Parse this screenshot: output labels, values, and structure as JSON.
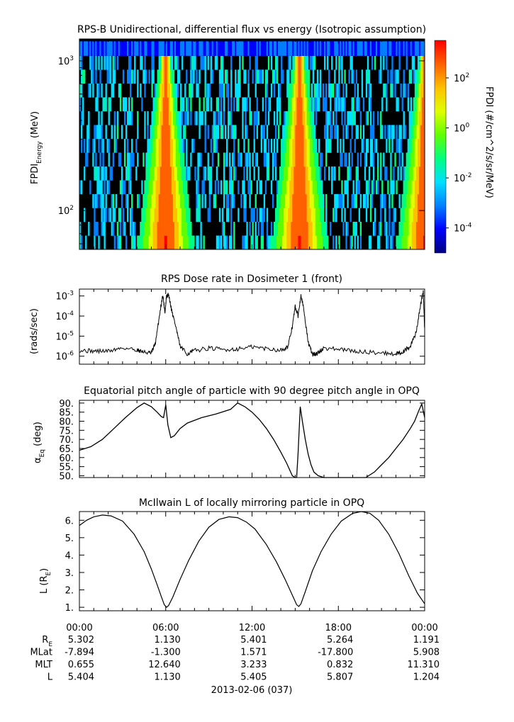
{
  "figure_date_label": "2013-02-06 (037)",
  "chart_data": [
    {
      "type": "heatmap",
      "title": "RPS-B  Unidirectional, differential flux vs energy (Isotropic assumption)",
      "ylabel_main": "FPDI",
      "ylabel_sub": "Energy",
      "ylabel_tail": " (MeV)",
      "y_scale": "log",
      "ylim": [
        55,
        1400
      ],
      "y_ticks": [
        {
          "base": "10",
          "exp": "2",
          "value": 100
        },
        {
          "base": "10",
          "exp": "3",
          "value": 1000
        }
      ],
      "xlim_hours": [
        0,
        24
      ],
      "flux_peaks_hours": [
        6.0,
        15.3,
        24.0
      ],
      "colorbar": {
        "label": "FPDI (#/cm^2/s/sr/MeV)",
        "scale": "log",
        "range_exp": [
          -5,
          3.5
        ],
        "colors": [
          "#000080",
          "#0000ff",
          "#0080ff",
          "#00e0ff",
          "#00ff80",
          "#60ff00",
          "#e0ff00",
          "#ffc000",
          "#ff6000",
          "#ff0000"
        ],
        "ticks": [
          {
            "base": "10",
            "exp": "2",
            "value_exp": 2
          },
          {
            "base": "10",
            "exp": "0",
            "value_exp": 0
          },
          {
            "base": "10",
            "exp": "-2",
            "value_exp": -2
          },
          {
            "base": "10",
            "exp": "-4",
            "value_exp": -4
          }
        ]
      }
    },
    {
      "type": "line",
      "title": "RPS  Dose rate in Dosimeter 1 (front)",
      "ylabel": "(rads/sec)",
      "y_scale": "log",
      "ylim": [
        4e-07,
        0.0022
      ],
      "y_ticks": [
        {
          "base": "10",
          "exp": "-3",
          "value": 0.001
        },
        {
          "base": "10",
          "exp": "-4",
          "value": 0.0001
        },
        {
          "base": "10",
          "exp": "-5",
          "value": 1e-05
        },
        {
          "base": "10",
          "exp": "-6",
          "value": 1e-06
        }
      ],
      "x_hours": [
        0,
        1,
        2,
        3,
        4,
        4.5,
        5,
        5.3,
        5.6,
        5.8,
        5.95,
        6.05,
        6.2,
        6.4,
        6.7,
        7.0,
        7.5,
        8,
        9,
        10,
        11,
        12,
        13,
        14,
        14.5,
        14.8,
        15.0,
        15.2,
        15.4,
        15.6,
        15.9,
        16.2,
        16.5,
        17,
        18,
        19,
        20,
        21,
        22,
        22.5,
        23,
        23.4,
        23.7,
        23.9,
        24
      ],
      "values": [
        2e-06,
        1.8e-06,
        1.8e-06,
        2.6e-06,
        2.1e-06,
        1.6e-06,
        1.4e-06,
        5e-06,
        0.00016,
        0.0011,
        0.00015,
        0.0009,
        0.0012,
        0.00022,
        3e-05,
        3e-06,
        1.3e-06,
        1.9e-06,
        2.5e-06,
        2.1e-06,
        2.3e-06,
        2.9e-06,
        2.4e-06,
        2e-06,
        3e-06,
        3e-05,
        0.0003,
        0.0001,
        0.0012,
        0.0002,
        5e-06,
        1.2e-06,
        1.3e-06,
        2.6e-06,
        2.2e-06,
        1.8e-06,
        1.6e-06,
        1.5e-06,
        1.3e-06,
        1.7e-06,
        3e-06,
        1.5e-05,
        0.0003,
        0.0017,
        2e-05
      ]
    },
    {
      "type": "line",
      "title": "Equatorial pitch angle of particle with 90 degree pitch angle in OPQ",
      "ylabel_main": "α",
      "ylabel_sub": "Eq",
      "ylabel_tail": " (deg)",
      "ylim": [
        49,
        91.5
      ],
      "y_ticks": [
        "90.",
        "85.",
        "80.",
        "75.",
        "70.",
        "65.",
        "60.",
        "55.",
        "50."
      ],
      "segments": [
        {
          "x_hours": [
            0,
            0.8,
            1.6,
            2.4,
            3.2,
            4.0,
            4.5,
            5.0,
            5.4,
            5.7,
            5.85,
            6.0,
            6.15,
            6.35,
            6.6,
            7.0,
            7.5,
            8.5,
            9.5,
            10.5,
            11.0,
            11.5,
            12.0,
            12.5,
            13.0,
            13.5,
            14.0,
            14.4,
            14.8,
            15.0,
            15.1
          ],
          "values": [
            64,
            66,
            70,
            76,
            82,
            87.5,
            90,
            88,
            85,
            82.5,
            82,
            89,
            78,
            71,
            72,
            76,
            79,
            82,
            84,
            86.5,
            90,
            88,
            85,
            81,
            76,
            70,
            63,
            57,
            50,
            49,
            49
          ]
        },
        {
          "x_hours": [
            15.1,
            15.2,
            15.35,
            15.5,
            15.7,
            15.9,
            16.1,
            16.3,
            16.6,
            17,
            18,
            19,
            19.9
          ],
          "values": [
            49,
            62,
            88,
            80,
            70,
            62,
            56,
            52,
            50,
            49,
            49,
            49,
            49
          ]
        },
        {
          "x_hours": [
            19.9,
            20.5,
            21,
            21.5,
            22,
            22.5,
            23,
            23.3,
            23.6,
            23.8,
            24
          ],
          "values": [
            49,
            52,
            56,
            60,
            65,
            70,
            76,
            80,
            86,
            89.5,
            82
          ]
        }
      ]
    },
    {
      "type": "line",
      "title": "McIlwain L of locally mirroring particle in OPQ",
      "ylabel_main": "L (R",
      "ylabel_sub": "E",
      "ylabel_tail": ")",
      "ylim": [
        0.8,
        6.5
      ],
      "y_ticks": [
        "6.",
        "5.",
        "4.",
        "3.",
        "2.",
        "1."
      ],
      "x_hours": [
        0,
        0.5,
        1.0,
        1.6,
        2.2,
        3.0,
        3.8,
        4.5,
        5.0,
        5.4,
        5.7,
        5.9,
        6.05,
        6.2,
        6.5,
        7.0,
        7.6,
        8.3,
        9.0,
        9.7,
        10.4,
        11.0,
        11.6,
        12.2,
        13.0,
        13.7,
        14.3,
        14.8,
        15.1,
        15.25,
        15.4,
        15.7,
        16.2,
        16.8,
        17.5,
        18.2,
        19.0,
        19.6,
        20.2,
        20.8,
        21.5,
        22.2,
        22.9,
        23.5,
        24.0
      ],
      "values": [
        5.7,
        6.0,
        6.2,
        6.3,
        6.25,
        5.95,
        5.2,
        4.2,
        3.2,
        2.3,
        1.6,
        1.15,
        1.0,
        1.1,
        1.6,
        2.6,
        3.7,
        4.8,
        5.6,
        6.05,
        6.2,
        6.15,
        5.9,
        5.5,
        4.6,
        3.6,
        2.6,
        1.7,
        1.15,
        1.05,
        1.2,
        1.9,
        3.1,
        4.2,
        5.2,
        5.95,
        6.4,
        6.5,
        6.4,
        6.0,
        5.2,
        4.1,
        2.8,
        1.8,
        1.2
      ]
    }
  ],
  "time_axis": {
    "hours": [
      0,
      6,
      12,
      18,
      24
    ],
    "labels": [
      "00:00",
      "06:00",
      "12:00",
      "18:00",
      "00:00"
    ]
  },
  "ephemeris": {
    "rows": [
      {
        "label_main": "R",
        "label_sub": "E",
        "values": [
          "5.302",
          "1.130",
          "5.401",
          "5.264",
          "1.191"
        ]
      },
      {
        "label_main": "MLat",
        "label_sub": "",
        "values": [
          "-7.894",
          "-1.300",
          "1.571",
          "-17.800",
          "5.908"
        ]
      },
      {
        "label_main": "MLT",
        "label_sub": "",
        "values": [
          "0.655",
          "12.640",
          "3.233",
          "0.832",
          "11.310"
        ]
      },
      {
        "label_main": "L",
        "label_sub": "",
        "values": [
          "5.404",
          "1.130",
          "5.405",
          "5.807",
          "1.204"
        ]
      }
    ]
  }
}
